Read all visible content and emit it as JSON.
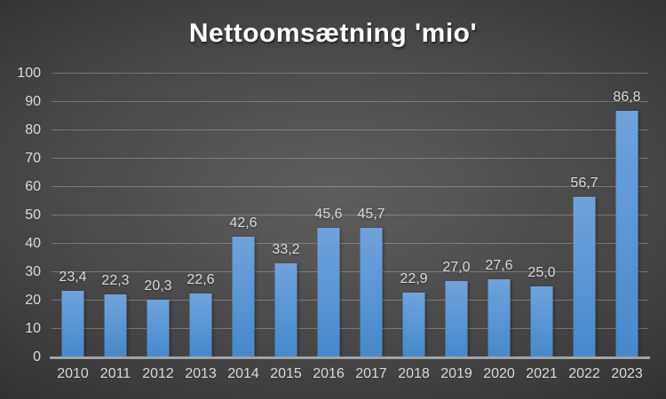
{
  "title": "Nettoomsætning 'mio'",
  "chart_data": {
    "type": "bar",
    "title": "Nettoomsætning 'mio'",
    "categories": [
      "2010",
      "2011",
      "2012",
      "2013",
      "2014",
      "2015",
      "2016",
      "2017",
      "2018",
      "2019",
      "2020",
      "2021",
      "2022",
      "2023"
    ],
    "values": [
      23.4,
      22.3,
      20.3,
      22.6,
      42.6,
      33.2,
      45.6,
      45.7,
      22.9,
      27.0,
      27.6,
      25.0,
      56.7,
      86.8
    ],
    "value_labels": [
      "23,4",
      "22,3",
      "20,3",
      "22,6",
      "42,6",
      "33,2",
      "45,6",
      "45,7",
      "22,9",
      "27,0",
      "27,6",
      "25,0",
      "56,7",
      "86,8"
    ],
    "xlabel": "",
    "ylabel": "",
    "ylim": [
      0,
      100
    ],
    "y_ticks": [
      0,
      10,
      20,
      30,
      40,
      50,
      60,
      70,
      80,
      90,
      100
    ],
    "grid": true,
    "legend": false,
    "decimal_separator": ",",
    "colors": {
      "bar_top": "#6FA3DD",
      "bar_bottom": "#4589CB",
      "text": "#d9d9d9",
      "title_text": "#ffffff",
      "axis_line": "#a2a2a2",
      "background_center": "#5d5d5d",
      "background_edge": "#1e1e1e"
    }
  }
}
